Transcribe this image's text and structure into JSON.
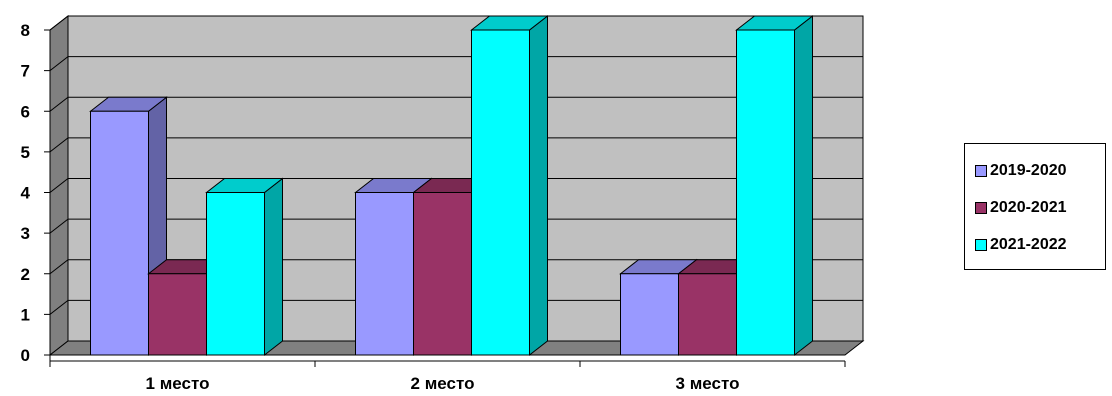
{
  "chart_data": {
    "type": "bar",
    "categories": [
      "1 место",
      "2 место",
      "3 место"
    ],
    "series": [
      {
        "name": "2019-2020",
        "values": [
          6,
          4,
          2
        ],
        "color": "#9999ff"
      },
      {
        "name": "2020-2021",
        "values": [
          2,
          4,
          2
        ],
        "color": "#993366"
      },
      {
        "name": "2021-2022",
        "values": [
          4,
          8,
          8
        ],
        "color": "#00ffff"
      }
    ],
    "yticks": [
      "0",
      "1",
      "2",
      "3",
      "4",
      "5",
      "6",
      "7",
      "8"
    ],
    "ylim": [
      0,
      8
    ],
    "grid": true,
    "style": "3d-clustered",
    "legend_position": "right",
    "wall_color": "#c0c0c0"
  }
}
